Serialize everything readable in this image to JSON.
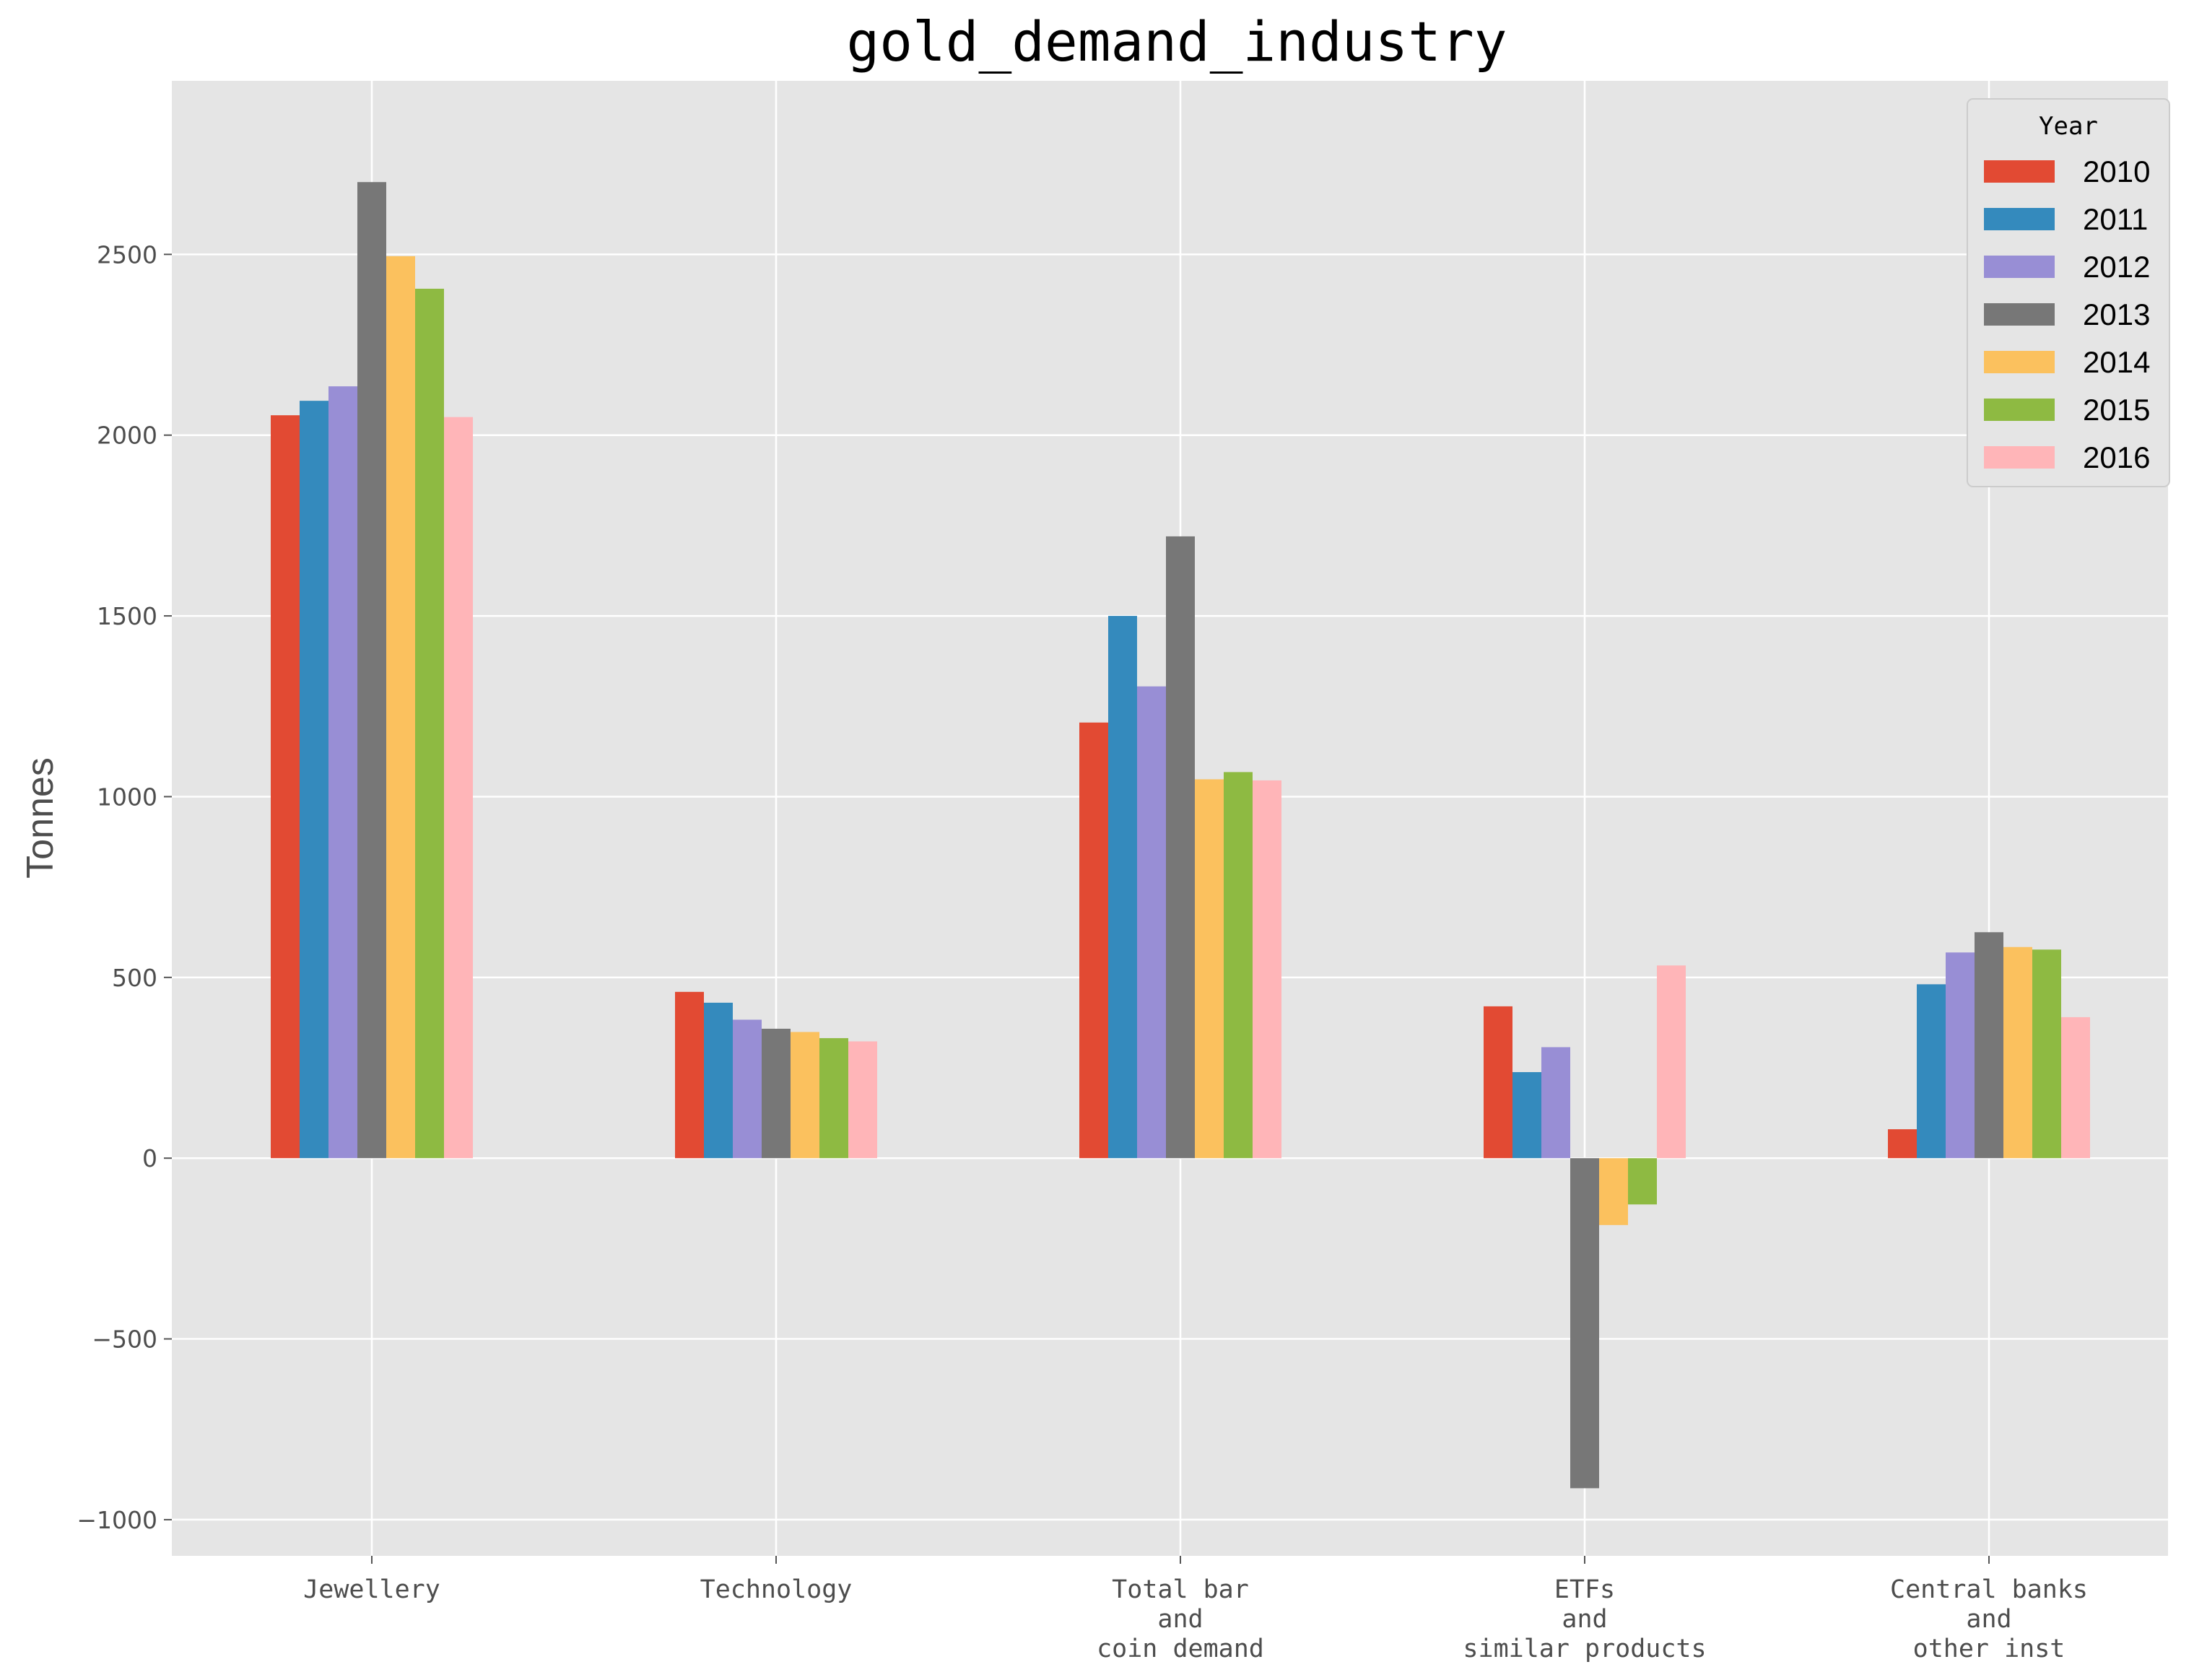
{
  "chart_data": {
    "type": "bar",
    "title": "gold_demand_industry",
    "xlabel": "",
    "ylabel": "Tonnes",
    "categories": [
      [
        "Jewellery"
      ],
      [
        "Technology"
      ],
      [
        "Total bar",
        "and",
        "coin demand"
      ],
      [
        "ETFs",
        "and",
        "similar products"
      ],
      [
        "Central banks",
        "and",
        "other inst"
      ]
    ],
    "series": [
      {
        "name": "2010",
        "color": "#E24A33",
        "values": [
          2055,
          460,
          1205,
          420,
          80
        ]
      },
      {
        "name": "2011",
        "color": "#348ABD",
        "values": [
          2095,
          430,
          1500,
          238,
          481
        ]
      },
      {
        "name": "2012",
        "color": "#988ED5",
        "values": [
          2135,
          383,
          1305,
          307,
          569
        ]
      },
      {
        "name": "2013",
        "color": "#777777",
        "values": [
          2700,
          358,
          1720,
          -913,
          625
        ]
      },
      {
        "name": "2014",
        "color": "#FBC15E",
        "values": [
          2495,
          349,
          1048,
          -185,
          584
        ]
      },
      {
        "name": "2015",
        "color": "#8EBA42",
        "values": [
          2405,
          332,
          1068,
          -128,
          577
        ]
      },
      {
        "name": "2016",
        "color": "#FFB5B8",
        "values": [
          2050,
          323,
          1045,
          533,
          390
        ]
      }
    ],
    "ylim": [
      -1100,
      2980
    ],
    "yticks": [
      -1000,
      -500,
      0,
      500,
      1000,
      1500,
      2000,
      2500
    ],
    "legend": {
      "title": "Year",
      "placement": "top-right"
    },
    "grid": true,
    "style": {
      "plot_background": "#E5E5E5",
      "grid_color": "#FFFFFF"
    }
  }
}
